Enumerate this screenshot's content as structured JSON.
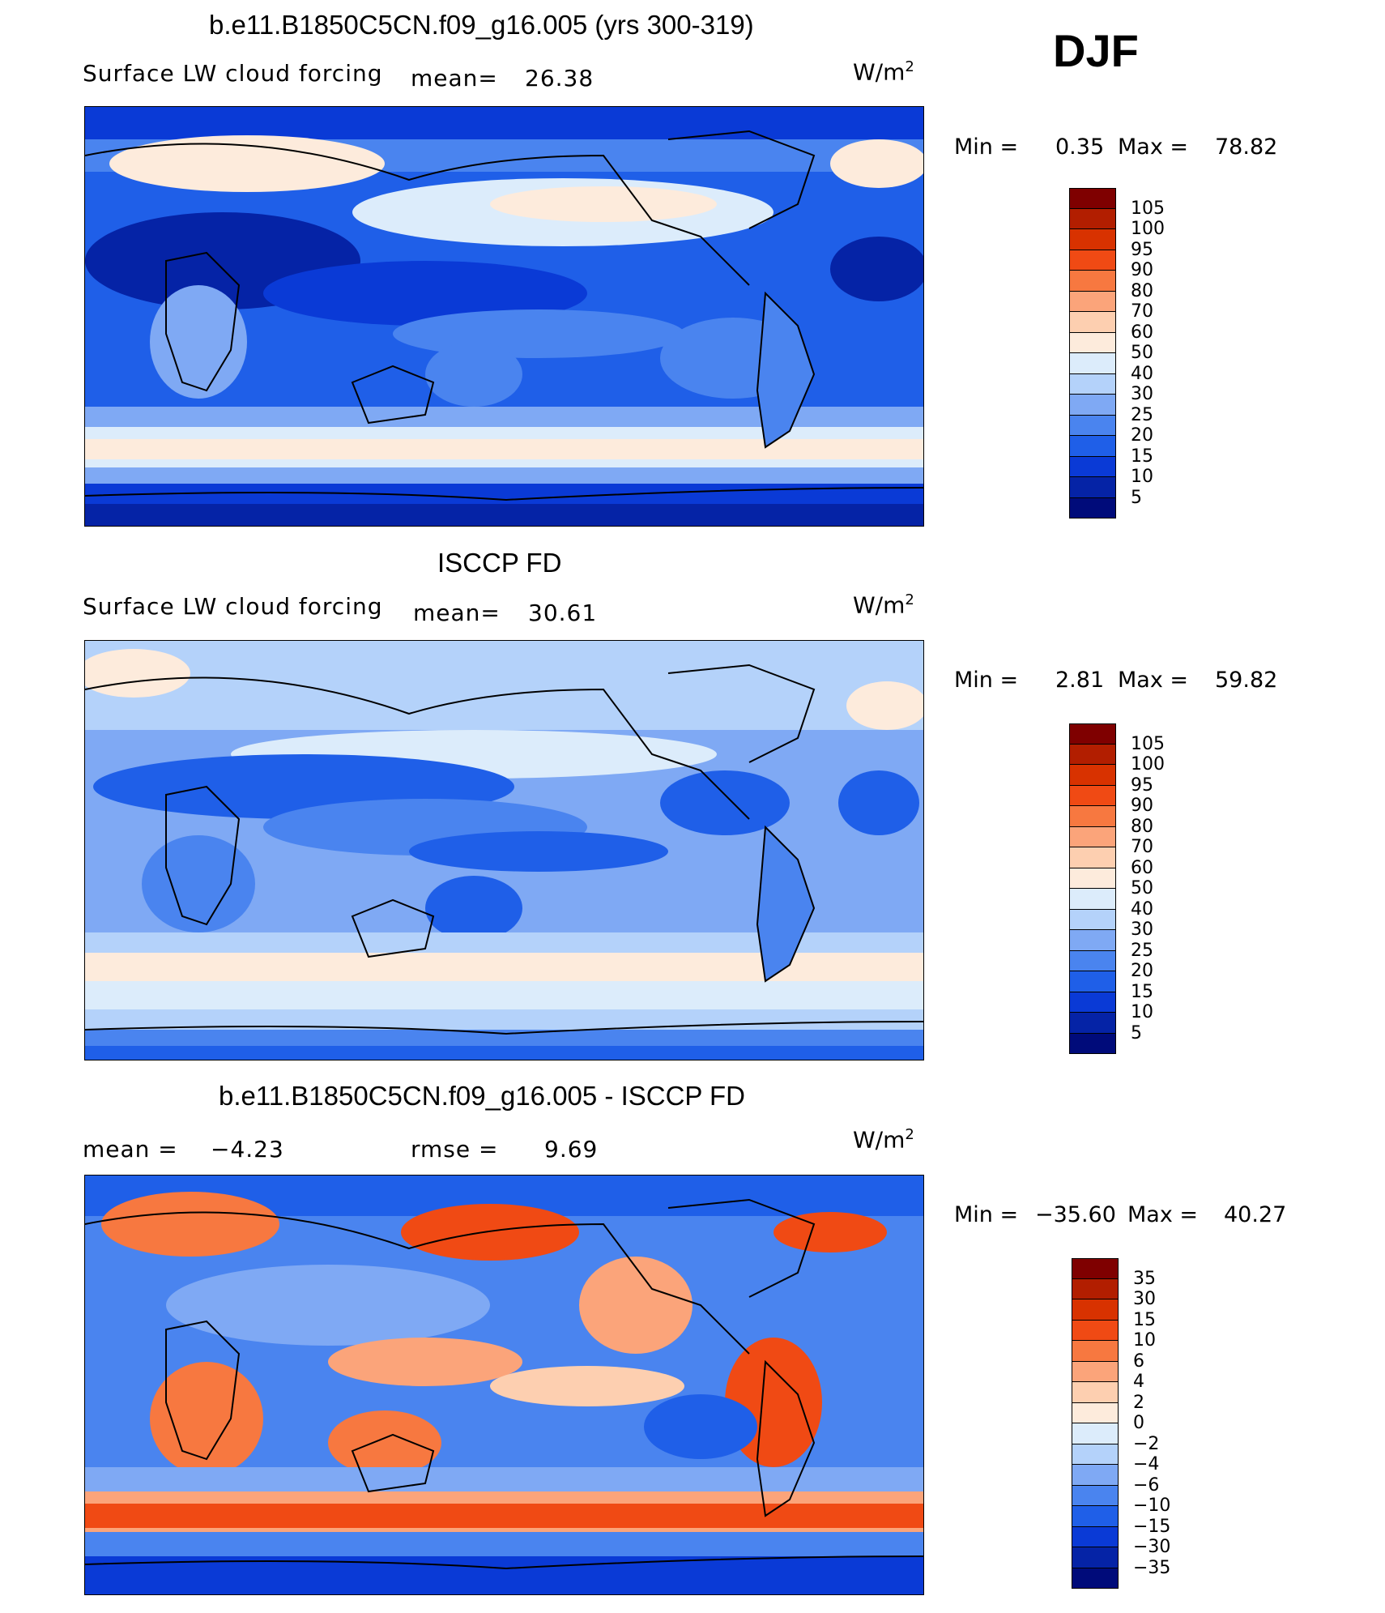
{
  "season": "DJF",
  "panels": [
    {
      "id": "model",
      "title": "b.e11.B1850C5CN.f09_g16.005 (yrs 300-319)",
      "left_label": "Surface LW cloud forcing",
      "stat1_label": "mean=",
      "stat1_value": "26.38",
      "units_base": "W/m",
      "units_exp": "2",
      "min_label": "Min =",
      "min_value": "0.35",
      "max_label": "Max =",
      "max_value": "78.82",
      "colorbar": {
        "colors": [
          "#7f0000",
          "#b21e00",
          "#d83200",
          "#f04a14",
          "#f77840",
          "#fba47a",
          "#fdcfb0",
          "#fdebdc",
          "#dcecfb",
          "#b4d2fa",
          "#7fa9f4",
          "#4a84ef",
          "#1f5fe8",
          "#0a3ad6",
          "#0523a6",
          "#000b7a"
        ],
        "labels": [
          "105",
          "100",
          "95",
          "90",
          "80",
          "70",
          "60",
          "50",
          "40",
          "30",
          "25",
          "20",
          "15",
          "10",
          "5"
        ]
      }
    },
    {
      "id": "obs",
      "title": "ISCCP FD",
      "left_label": "Surface LW cloud forcing",
      "stat1_label": "mean=",
      "stat1_value": "30.61",
      "units_base": "W/m",
      "units_exp": "2",
      "min_label": "Min =",
      "min_value": "2.81",
      "max_label": "Max =",
      "max_value": "59.82",
      "colorbar": {
        "colors": [
          "#7f0000",
          "#b21e00",
          "#d83200",
          "#f04a14",
          "#f77840",
          "#fba47a",
          "#fdcfb0",
          "#fdebdc",
          "#dcecfb",
          "#b4d2fa",
          "#7fa9f4",
          "#4a84ef",
          "#1f5fe8",
          "#0a3ad6",
          "#0523a6",
          "#000b7a"
        ],
        "labels": [
          "105",
          "100",
          "95",
          "90",
          "80",
          "70",
          "60",
          "50",
          "40",
          "30",
          "25",
          "20",
          "15",
          "10",
          "5"
        ]
      }
    },
    {
      "id": "diff",
      "title": "b.e11.B1850C5CN.f09_g16.005 - ISCCP FD",
      "stat1_label": "mean =",
      "stat1_value": "−4.23",
      "stat2_label": "rmse =",
      "stat2_value": "9.69",
      "units_base": "W/m",
      "units_exp": "2",
      "min_label": "Min =",
      "min_value": "−35.60",
      "max_label": "Max =",
      "max_value": "40.27",
      "colorbar": {
        "colors": [
          "#7f0000",
          "#b21e00",
          "#d83200",
          "#f04a14",
          "#f77840",
          "#fba47a",
          "#fdcfb0",
          "#fdebdc",
          "#dcecfb",
          "#b4d2fa",
          "#7fa9f4",
          "#4a84ef",
          "#1f5fe8",
          "#0a3ad6",
          "#0523a6",
          "#000b7a"
        ],
        "labels": [
          "35",
          "30",
          "15",
          "10",
          "6",
          "4",
          "2",
          "0",
          "−2",
          "−4",
          "−6",
          "−10",
          "−15",
          "−30",
          "−35"
        ]
      }
    }
  ]
}
